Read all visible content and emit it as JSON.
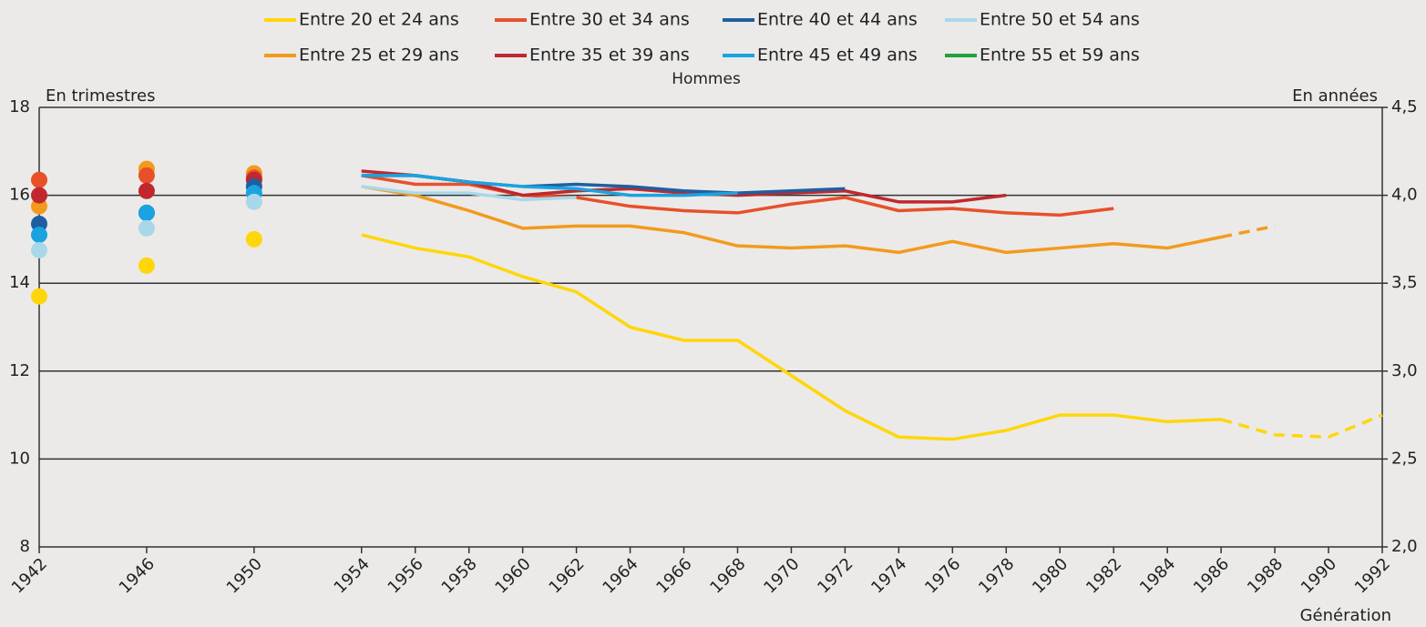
{
  "chart_data": {
    "type": "line",
    "subtitle": "Hommes",
    "y_label": "En trimestres",
    "y2_label": "En années",
    "x_label": "Génération",
    "projection_from": 1986,
    "x": [
      1942,
      1944,
      1946,
      1948,
      1950,
      1952,
      1954,
      1956,
      1958,
      1960,
      1962,
      1964,
      1966,
      1968,
      1970,
      1972,
      1974,
      1976,
      1978,
      1980,
      1982,
      1984,
      1986,
      1988,
      1990,
      1992
    ],
    "xlim": [
      1942,
      1992
    ],
    "xticks": [
      1942,
      1946,
      1950,
      1954,
      1956,
      1958,
      1960,
      1962,
      1964,
      1966,
      1968,
      1970,
      1972,
      1974,
      1976,
      1978,
      1980,
      1982,
      1984,
      1986,
      1988,
      1990,
      1992
    ],
    "ylim": [
      8,
      18
    ],
    "yticks": [
      8,
      10,
      12,
      14,
      16,
      18
    ],
    "y2lim": [
      2,
      4.5
    ],
    "y2ticks": [
      {
        "value": 2,
        "label": "2,0"
      },
      {
        "value": 2.5,
        "label": "2,5"
      },
      {
        "value": 3,
        "label": "3,0"
      },
      {
        "value": 3.5,
        "label": "3,5"
      },
      {
        "value": 4,
        "label": "4,0"
      },
      {
        "value": 4.5,
        "label": "4,5"
      }
    ],
    "grid": true,
    "series": [
      {
        "name": "Entre 20 et 24 ans",
        "color": "#ffd60a",
        "values": [
          13.7,
          null,
          14.4,
          null,
          15.0,
          null,
          15.1,
          14.8,
          14.6,
          14.15,
          13.8,
          13.0,
          12.7,
          12.7,
          11.9,
          11.1,
          10.5,
          10.45,
          10.65,
          11.0,
          11.0,
          10.85,
          10.9,
          10.55,
          10.5,
          11.0
        ]
      },
      {
        "name": "Entre 25 et 29 ans",
        "color": "#f39a1e",
        "values": [
          15.75,
          null,
          16.6,
          null,
          16.5,
          null,
          16.2,
          16.0,
          15.65,
          15.25,
          15.3,
          15.3,
          15.15,
          14.85,
          14.8,
          14.85,
          14.7,
          14.95,
          14.7,
          14.8,
          14.9,
          14.8,
          15.05,
          15.3,
          null,
          null
        ]
      },
      {
        "name": "Entre 30 et 34 ans",
        "color": "#e8502a",
        "values": [
          16.35,
          null,
          16.45,
          null,
          16.4,
          null,
          16.45,
          16.25,
          16.25,
          16.0,
          15.95,
          15.75,
          15.65,
          15.6,
          15.8,
          15.95,
          15.65,
          15.7,
          15.6,
          15.55,
          15.7,
          null,
          null,
          null,
          null,
          null
        ]
      },
      {
        "name": "Entre 35 et 39 ans",
        "color": "#c0282d",
        "values": [
          16.0,
          null,
          16.1,
          null,
          16.35,
          null,
          16.55,
          16.45,
          16.3,
          16.0,
          16.1,
          16.15,
          16.05,
          16.0,
          16.05,
          16.1,
          15.85,
          15.85,
          16.0,
          null,
          null,
          null,
          null,
          null,
          null,
          null
        ]
      },
      {
        "name": "Entre 40 et 44 ans",
        "color": "#1f5fa0",
        "values": [
          15.35,
          null,
          15.6,
          null,
          16.2,
          null,
          16.45,
          16.45,
          16.3,
          16.2,
          16.25,
          16.2,
          16.1,
          16.05,
          16.1,
          16.15,
          null,
          null,
          null,
          null,
          null,
          null,
          null,
          null,
          null,
          null
        ]
      },
      {
        "name": "Entre 45 et 49 ans",
        "color": "#1aa3e0",
        "values": [
          15.1,
          null,
          15.6,
          null,
          16.05,
          null,
          16.45,
          16.45,
          16.3,
          16.2,
          16.15,
          16.0,
          16.0,
          16.05,
          null,
          null,
          null,
          null,
          null,
          null,
          null,
          null,
          null,
          null,
          null,
          null
        ]
      },
      {
        "name": "Entre 50 et 54 ans",
        "color": "#a8d8e8",
        "values": [
          14.75,
          null,
          15.25,
          null,
          15.85,
          null,
          16.2,
          16.05,
          16.05,
          15.9,
          15.95,
          null,
          null,
          null,
          null,
          null,
          null,
          null,
          null,
          null,
          null,
          null,
          null,
          null,
          null,
          null
        ]
      },
      {
        "name": "Entre 55 et 59 ans",
        "color": "#1fa33a",
        "values": [
          null,
          null,
          null,
          null,
          null,
          null,
          null,
          null,
          null,
          null,
          null,
          null,
          null,
          null,
          null,
          null,
          null,
          null,
          null,
          null,
          null,
          null,
          null,
          null,
          null,
          null
        ]
      }
    ]
  }
}
